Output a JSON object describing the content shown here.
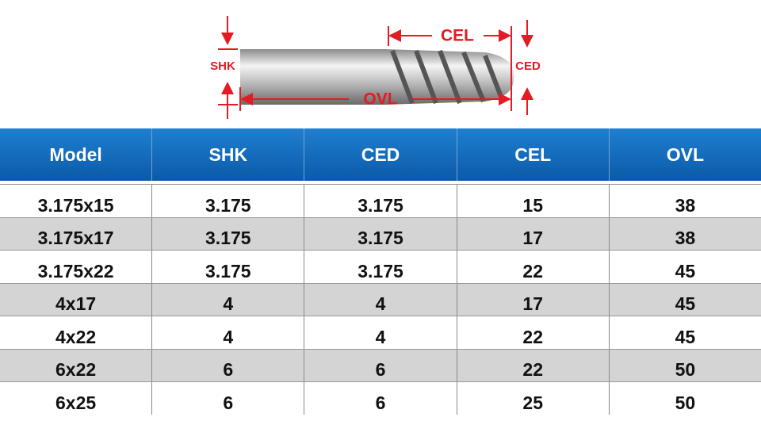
{
  "diagram": {
    "labels": {
      "shk": "SHK",
      "cel": "CEL",
      "ced": "CED",
      "ovl": "OVL"
    }
  },
  "table": {
    "header": [
      "Model",
      "SHK",
      "CED",
      "CEL",
      "OVL"
    ],
    "rows": [
      [
        "3.175x15",
        "3.175",
        "3.175",
        "15",
        "38"
      ],
      [
        "3.175x17",
        "3.175",
        "3.175",
        "17",
        "38"
      ],
      [
        "3.175x22",
        "3.175",
        "3.175",
        "22",
        "45"
      ],
      [
        "4x17",
        "4",
        "4",
        "17",
        "45"
      ],
      [
        "4x22",
        "4",
        "4",
        "22",
        "45"
      ],
      [
        "6x22",
        "6",
        "6",
        "22",
        "50"
      ],
      [
        "6x25",
        "6",
        "6",
        "25",
        "50"
      ]
    ]
  }
}
